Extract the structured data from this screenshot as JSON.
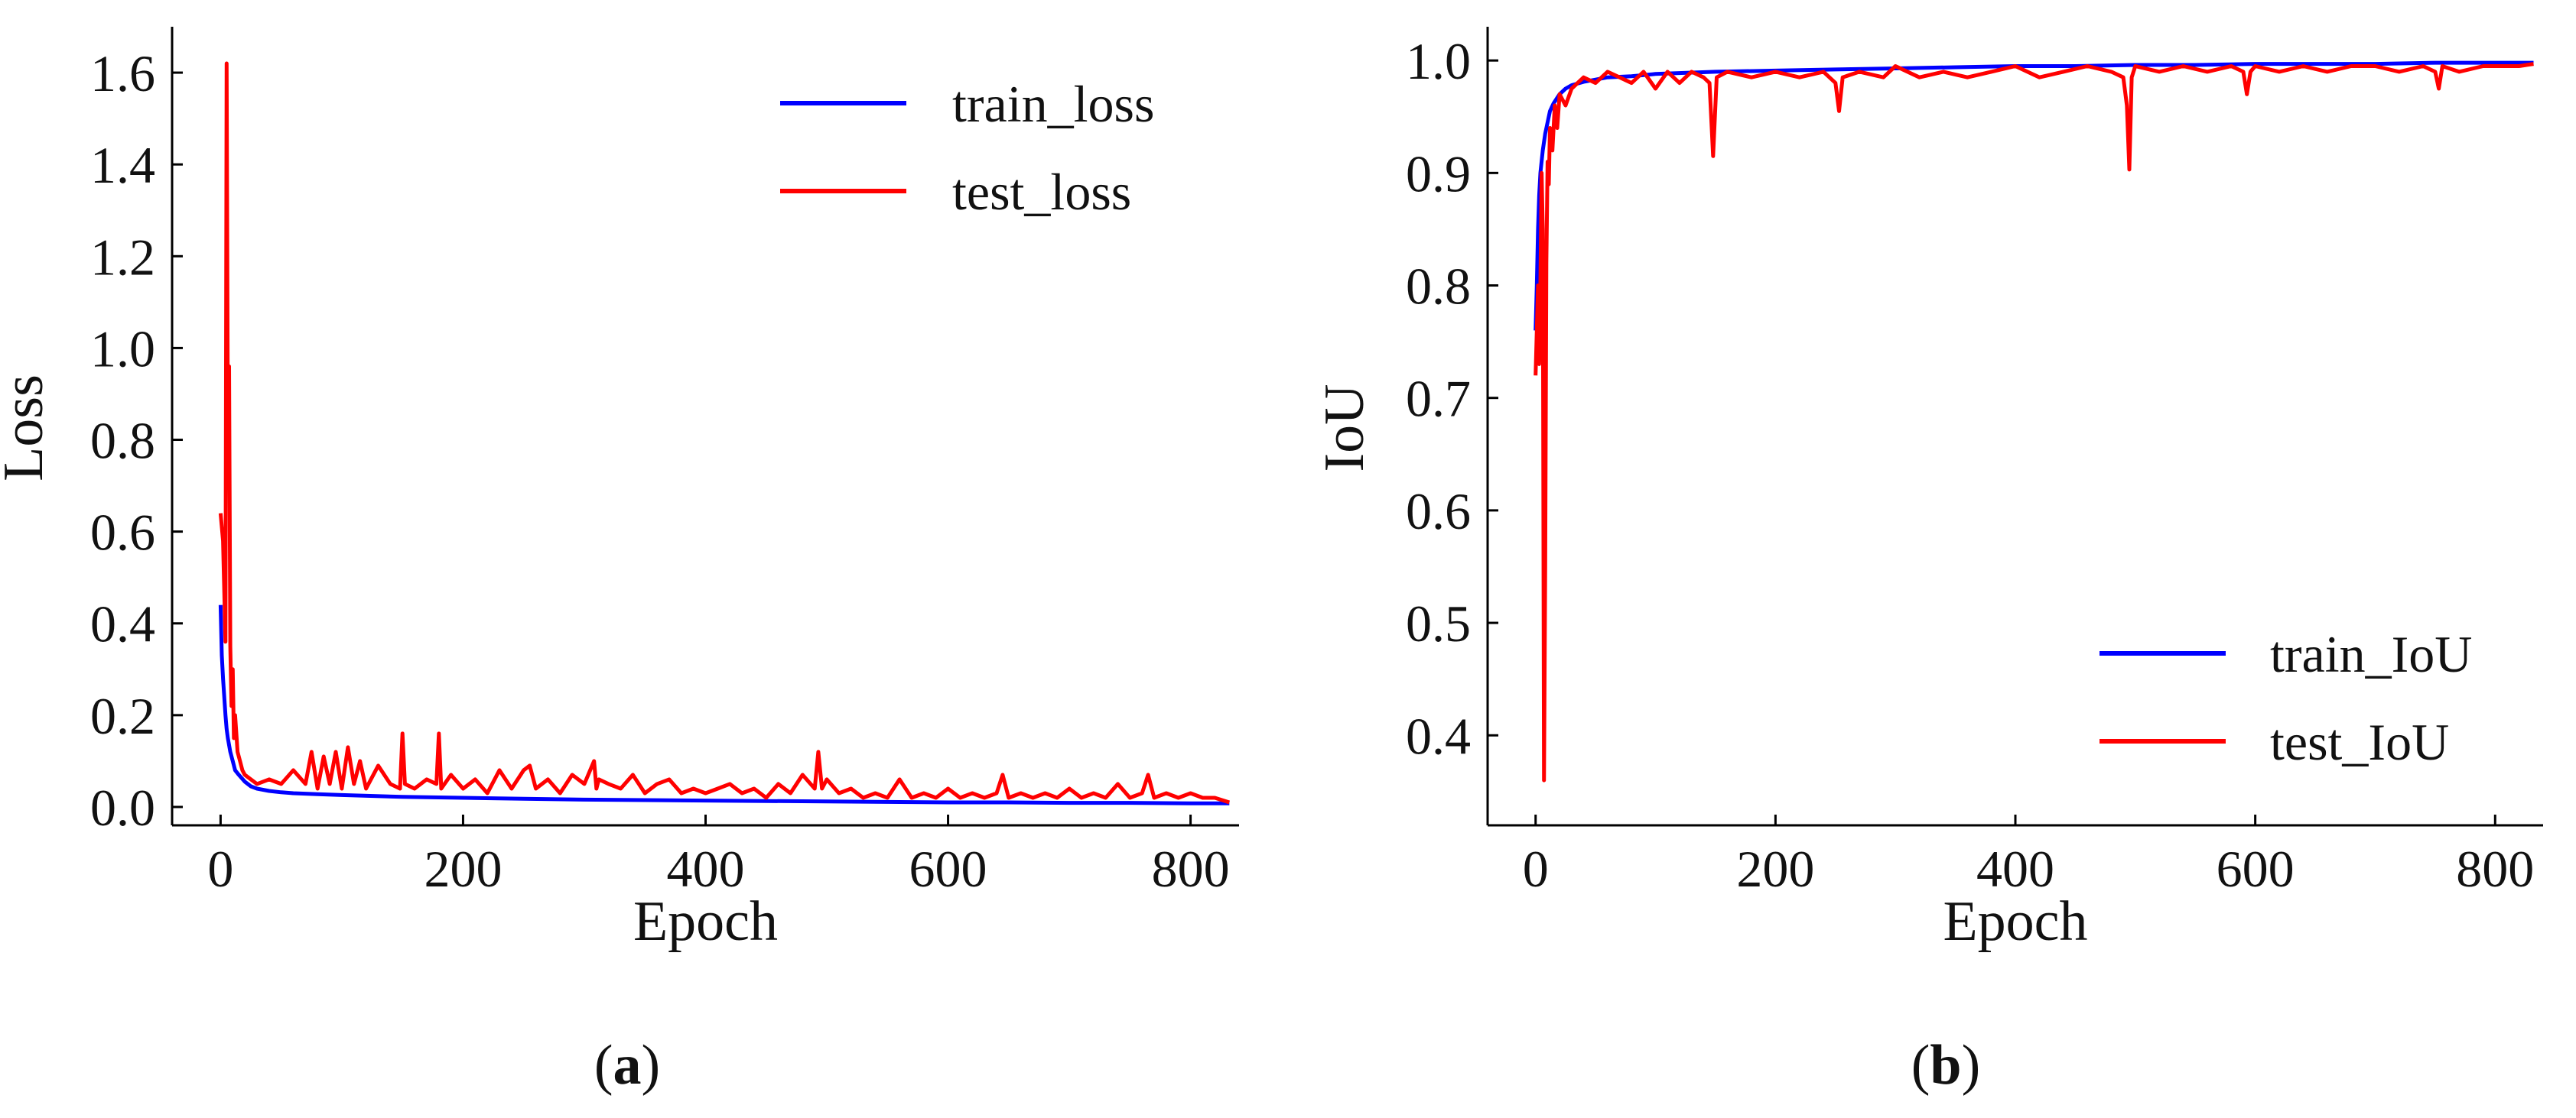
{
  "chart_data": [
    {
      "type": "line",
      "panel_label": "a",
      "xlabel": "Epoch",
      "ylabel": "Loss",
      "xlim": [
        -40,
        840
      ],
      "ylim": [
        -0.04,
        1.7
      ],
      "xticks": [
        0,
        200,
        400,
        600,
        800
      ],
      "xtick_labels": [
        "0",
        "200",
        "400",
        "600",
        "800"
      ],
      "yticks": [
        0.0,
        0.2,
        0.4,
        0.6,
        0.8,
        1.0,
        1.2,
        1.4,
        1.6
      ],
      "ytick_labels": [
        "0.0",
        "0.2",
        "0.4",
        "0.6",
        "0.8",
        "1.0",
        "1.2",
        "1.4",
        "1.6"
      ],
      "grid": false,
      "legend_position": "top-right",
      "series": [
        {
          "name": "train_loss",
          "color": "#0000ff",
          "x": [
            0,
            1,
            2,
            3,
            4,
            5,
            6,
            8,
            10,
            12,
            15,
            20,
            25,
            30,
            40,
            50,
            60,
            80,
            100,
            150,
            200,
            250,
            300,
            350,
            400,
            450,
            500,
            550,
            600,
            650,
            700,
            750,
            800,
            832
          ],
          "y": [
            0.44,
            0.33,
            0.28,
            0.24,
            0.2,
            0.17,
            0.15,
            0.12,
            0.1,
            0.08,
            0.07,
            0.055,
            0.045,
            0.04,
            0.035,
            0.032,
            0.03,
            0.028,
            0.026,
            0.022,
            0.02,
            0.018,
            0.016,
            0.015,
            0.014,
            0.013,
            0.012,
            0.011,
            0.01,
            0.01,
            0.009,
            0.009,
            0.008,
            0.008
          ]
        },
        {
          "name": "test_loss",
          "color": "#ff0000",
          "x": [
            0,
            2,
            4,
            5,
            6,
            7,
            8,
            9,
            10,
            11,
            12,
            14,
            16,
            18,
            20,
            25,
            30,
            40,
            50,
            60,
            70,
            75,
            80,
            85,
            90,
            95,
            100,
            105,
            110,
            115,
            120,
            130,
            140,
            148,
            150,
            152,
            160,
            170,
            178,
            180,
            182,
            190,
            200,
            210,
            220,
            230,
            240,
            250,
            255,
            260,
            270,
            280,
            290,
            300,
            308,
            310,
            312,
            320,
            330,
            340,
            350,
            360,
            370,
            380,
            390,
            400,
            410,
            420,
            430,
            440,
            450,
            460,
            470,
            480,
            490,
            493,
            496,
            500,
            510,
            520,
            530,
            540,
            550,
            560,
            570,
            580,
            590,
            600,
            610,
            620,
            630,
            640,
            645,
            650,
            660,
            670,
            680,
            690,
            700,
            710,
            720,
            730,
            740,
            750,
            760,
            765,
            770,
            780,
            790,
            800,
            810,
            820,
            832
          ],
          "y": [
            0.64,
            0.58,
            0.36,
            1.62,
            0.85,
            0.96,
            0.35,
            0.22,
            0.3,
            0.15,
            0.2,
            0.12,
            0.1,
            0.08,
            0.07,
            0.06,
            0.05,
            0.06,
            0.05,
            0.08,
            0.05,
            0.12,
            0.04,
            0.11,
            0.05,
            0.12,
            0.04,
            0.13,
            0.05,
            0.1,
            0.04,
            0.09,
            0.05,
            0.04,
            0.16,
            0.05,
            0.04,
            0.06,
            0.05,
            0.16,
            0.04,
            0.07,
            0.04,
            0.06,
            0.03,
            0.08,
            0.04,
            0.08,
            0.09,
            0.04,
            0.06,
            0.03,
            0.07,
            0.05,
            0.1,
            0.04,
            0.06,
            0.05,
            0.04,
            0.07,
            0.03,
            0.05,
            0.06,
            0.03,
            0.04,
            0.03,
            0.04,
            0.05,
            0.03,
            0.04,
            0.02,
            0.05,
            0.03,
            0.07,
            0.04,
            0.12,
            0.04,
            0.06,
            0.03,
            0.04,
            0.02,
            0.03,
            0.02,
            0.06,
            0.02,
            0.03,
            0.02,
            0.04,
            0.02,
            0.03,
            0.02,
            0.03,
            0.07,
            0.02,
            0.03,
            0.02,
            0.03,
            0.02,
            0.04,
            0.02,
            0.03,
            0.02,
            0.05,
            0.02,
            0.03,
            0.07,
            0.02,
            0.03,
            0.02,
            0.03,
            0.02,
            0.02,
            0.01
          ]
        }
      ]
    },
    {
      "type": "line",
      "panel_label": "b",
      "xlabel": "Epoch",
      "ylabel": "IoU",
      "xlim": [
        -40,
        840
      ],
      "ylim": [
        0.32,
        1.03
      ],
      "xticks": [
        0,
        200,
        400,
        600,
        800
      ],
      "xtick_labels": [
        "0",
        "200",
        "400",
        "600",
        "800"
      ],
      "yticks": [
        0.4,
        0.5,
        0.6,
        0.7,
        0.8,
        0.9,
        1.0
      ],
      "ytick_labels": [
        "0.4",
        "0.5",
        "0.6",
        "0.7",
        "0.8",
        "0.9",
        "1.0"
      ],
      "grid": false,
      "legend_position": "bottom-right",
      "series": [
        {
          "name": "train_IoU",
          "color": "#0000ff",
          "x": [
            0,
            1,
            2,
            3,
            4,
            6,
            8,
            10,
            12,
            15,
            20,
            25,
            30,
            40,
            50,
            60,
            80,
            100,
            150,
            200,
            250,
            300,
            350,
            400,
            450,
            500,
            550,
            600,
            650,
            700,
            750,
            800,
            832
          ],
          "y": [
            0.76,
            0.8,
            0.85,
            0.88,
            0.9,
            0.92,
            0.935,
            0.945,
            0.955,
            0.962,
            0.97,
            0.975,
            0.978,
            0.981,
            0.983,
            0.985,
            0.986,
            0.988,
            0.99,
            0.991,
            0.992,
            0.993,
            0.994,
            0.995,
            0.995,
            0.996,
            0.996,
            0.997,
            0.997,
            0.997,
            0.998,
            0.998,
            0.998
          ]
        },
        {
          "name": "test_IoU",
          "color": "#ff0000",
          "x": [
            0,
            2,
            3,
            4,
            5,
            6,
            7,
            8,
            9,
            10,
            11,
            12,
            14,
            16,
            18,
            20,
            25,
            30,
            40,
            50,
            60,
            70,
            80,
            90,
            100,
            110,
            120,
            130,
            140,
            145,
            148,
            151,
            160,
            180,
            200,
            220,
            240,
            250,
            253,
            256,
            270,
            290,
            300,
            320,
            340,
            360,
            380,
            400,
            420,
            440,
            460,
            480,
            490,
            493,
            495,
            497,
            500,
            520,
            540,
            560,
            580,
            590,
            593,
            596,
            600,
            620,
            640,
            660,
            680,
            700,
            720,
            740,
            750,
            753,
            756,
            770,
            790,
            800,
            820,
            832
          ],
          "y": [
            0.72,
            0.8,
            0.73,
            0.8,
            0.9,
            0.85,
            0.36,
            0.55,
            0.82,
            0.91,
            0.89,
            0.94,
            0.92,
            0.96,
            0.94,
            0.97,
            0.96,
            0.975,
            0.985,
            0.98,
            0.99,
            0.985,
            0.98,
            0.99,
            0.975,
            0.99,
            0.98,
            0.99,
            0.985,
            0.98,
            0.915,
            0.985,
            0.99,
            0.985,
            0.99,
            0.985,
            0.99,
            0.98,
            0.955,
            0.985,
            0.99,
            0.985,
            0.995,
            0.985,
            0.99,
            0.985,
            0.99,
            0.995,
            0.985,
            0.99,
            0.995,
            0.99,
            0.985,
            0.96,
            0.903,
            0.985,
            0.995,
            0.99,
            0.995,
            0.99,
            0.995,
            0.99,
            0.97,
            0.99,
            0.995,
            0.99,
            0.995,
            0.99,
            0.995,
            0.995,
            0.99,
            0.995,
            0.99,
            0.975,
            0.995,
            0.99,
            0.995,
            0.995,
            0.995,
            0.997
          ]
        }
      ]
    }
  ],
  "captions": [
    "(a)",
    "(b)"
  ]
}
